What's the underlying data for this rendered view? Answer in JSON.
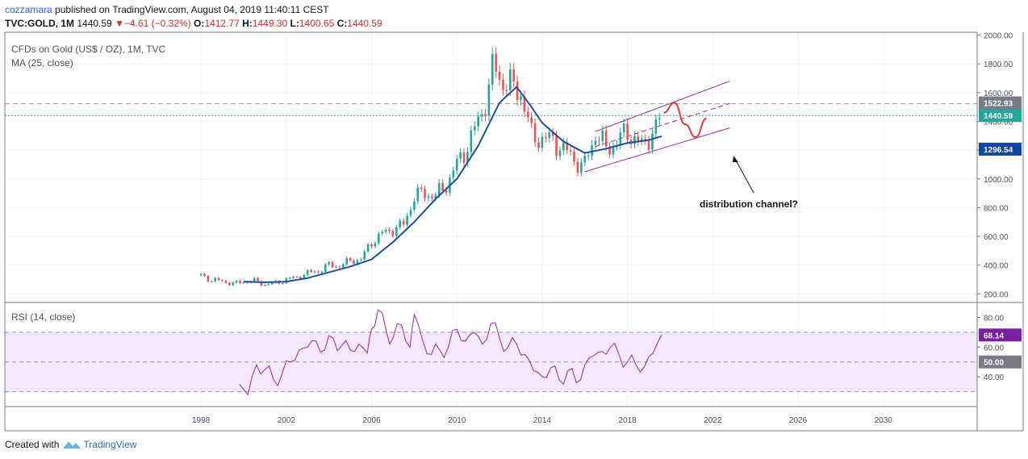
{
  "header": {
    "author": "cozzamara",
    "published": "published on TradingView.com, August 04, 2019 11:40:11 CEST",
    "symbol": "TVC:GOLD, 1M",
    "price": "1440.59",
    "change_arrow": "▼",
    "change": "−4.61 (−0.32%)",
    "o_label": "O:",
    "o_value": "1412.77",
    "h_label": "H:",
    "h_value": "1449.30",
    "l_label": "L:",
    "l_value": "1400.65",
    "c_label": "C:",
    "c_value": "1440.59"
  },
  "footer": {
    "created_with": "Created with",
    "brand": "TradingView",
    "icon": "tradingview-logo-icon"
  },
  "chart_data": [
    {
      "type": "candlestick",
      "title": "CFDs on Gold (US$ / OZ), 1M, TVC",
      "indicator": "MA (25, close)",
      "y_axis": {
        "ticks": [
          "200.00",
          "400.00",
          "600.00",
          "800.00",
          "1000.00",
          "1200.00",
          "1400.00",
          "1600.00",
          "1800.00",
          "2000.00"
        ],
        "ylim": [
          140,
          2020
        ]
      },
      "x_axis": {
        "ticks": [
          "1998",
          "2002",
          "2006",
          "2010",
          "2014",
          "2018",
          "2022",
          "2026",
          "2030"
        ],
        "xlim": [
          1988.8,
          2034.4
        ]
      },
      "price_series": {
        "name": "TVC:GOLD",
        "x": [
          1998.0,
          1998.5,
          1999.0,
          1999.5,
          2000.0,
          2000.5,
          2001.0,
          2001.5,
          2002.0,
          2002.5,
          2003.0,
          2003.5,
          2004.0,
          2004.5,
          2005.0,
          2005.5,
          2006.0,
          2006.5,
          2007.0,
          2007.5,
          2008.0,
          2008.5,
          2009.0,
          2009.5,
          2010.0,
          2010.5,
          2011.0,
          2011.5,
          2011.7,
          2012.0,
          2012.5,
          2013.0,
          2013.5,
          2014.0,
          2014.5,
          2015.0,
          2015.5,
          2015.9,
          2016.5,
          2017.0,
          2017.5,
          2018.0,
          2018.7,
          2019.0,
          2019.3,
          2019.6
        ],
        "close": [
          330,
          295,
          290,
          270,
          285,
          290,
          265,
          275,
          300,
          315,
          345,
          360,
          400,
          395,
          430,
          440,
          560,
          620,
          650,
          680,
          880,
          900,
          880,
          960,
          1100,
          1230,
          1400,
          1620,
          1800,
          1700,
          1650,
          1600,
          1300,
          1280,
          1270,
          1200,
          1150,
          1060,
          1320,
          1210,
          1260,
          1330,
          1220,
          1300,
          1340,
          1440.59
        ]
      },
      "ma_series": {
        "name": "MA (25, close)",
        "x": [
          2000.0,
          2001.0,
          2002.0,
          2003.0,
          2004.0,
          2005.0,
          2006.0,
          2007.0,
          2008.0,
          2009.0,
          2010.0,
          2011.0,
          2012.0,
          2012.8,
          2013.5,
          2014.0,
          2015.0,
          2016.0,
          2017.0,
          2018.0,
          2019.0,
          2019.6
        ],
        "values": [
          285,
          280,
          285,
          310,
          350,
          390,
          440,
          560,
          700,
          860,
          1000,
          1230,
          1530,
          1640,
          1500,
          1390,
          1260,
          1180,
          1210,
          1250,
          1270,
          1296.54
        ]
      },
      "channel": {
        "upper": [
          [
            2016.5,
            1330
          ],
          [
            2022.8,
            1680
          ]
        ],
        "middle": [
          [
            2016.5,
            1225
          ],
          [
            2022.8,
            1525
          ]
        ],
        "lower": [
          [
            2016.0,
            1050
          ],
          [
            2022.8,
            1355
          ]
        ]
      },
      "forecast": {
        "x": [
          2019.7,
          2020.2,
          2020.7,
          2021.2,
          2021.7
        ],
        "y": [
          1460,
          1530,
          1380,
          1290,
          1420
        ]
      },
      "levels": [
        {
          "value": 1522.93,
          "label": "1522.93",
          "color": "#787b86"
        },
        {
          "value": 1440.59,
          "label": "1440.59",
          "color": "#26a69a"
        },
        {
          "value": 1296.54,
          "label": "1296.54",
          "color": "#0d47a1"
        }
      ],
      "annotation": "distribution channel?",
      "colors": {
        "up": "#26a69a",
        "down": "#ef5350",
        "ma": "#1f4e9c",
        "channel": "#9c27b0",
        "forecast": "#e53935"
      }
    },
    {
      "type": "line",
      "title": "RSI (14, close)",
      "y_axis": {
        "ticks": [
          "40.00",
          "60.00",
          "80.00"
        ],
        "ylim": [
          20,
          90
        ]
      },
      "band": [
        30,
        70
      ],
      "series": [
        {
          "name": "RSI",
          "x": [
            1999.8,
            2000.2,
            2000.6,
            2001.0,
            2001.4,
            2001.8,
            2002.2,
            2002.6,
            2003.0,
            2003.4,
            2003.8,
            2004.2,
            2004.6,
            2005.0,
            2005.4,
            2005.8,
            2006.0,
            2006.3,
            2006.7,
            2007.0,
            2007.4,
            2007.8,
            2008.0,
            2008.4,
            2008.8,
            2009.2,
            2009.6,
            2010.0,
            2010.4,
            2010.8,
            2011.2,
            2011.6,
            2012.0,
            2012.4,
            2012.8,
            2013.2,
            2013.6,
            2014.0,
            2014.4,
            2014.8,
            2015.2,
            2015.6,
            2016.0,
            2016.4,
            2016.8,
            2017.2,
            2017.6,
            2018.0,
            2018.4,
            2018.8,
            2019.2,
            2019.6
          ],
          "values": [
            35,
            28,
            48,
            45,
            38,
            42,
            50,
            58,
            60,
            64,
            58,
            66,
            61,
            58,
            62,
            56,
            72,
            85,
            70,
            66,
            75,
            60,
            82,
            64,
            55,
            58,
            60,
            72,
            64,
            70,
            62,
            76,
            66,
            60,
            62,
            55,
            44,
            40,
            46,
            38,
            44,
            36,
            48,
            54,
            57,
            60,
            55,
            50,
            48,
            47,
            56,
            68.14
          ]
        }
      ],
      "levels": [
        {
          "value": 68.14,
          "label": "68.14",
          "color": "#7b1fa2"
        },
        {
          "value": 50.0,
          "label": "50.00",
          "color": "#787b86"
        }
      ]
    }
  ]
}
